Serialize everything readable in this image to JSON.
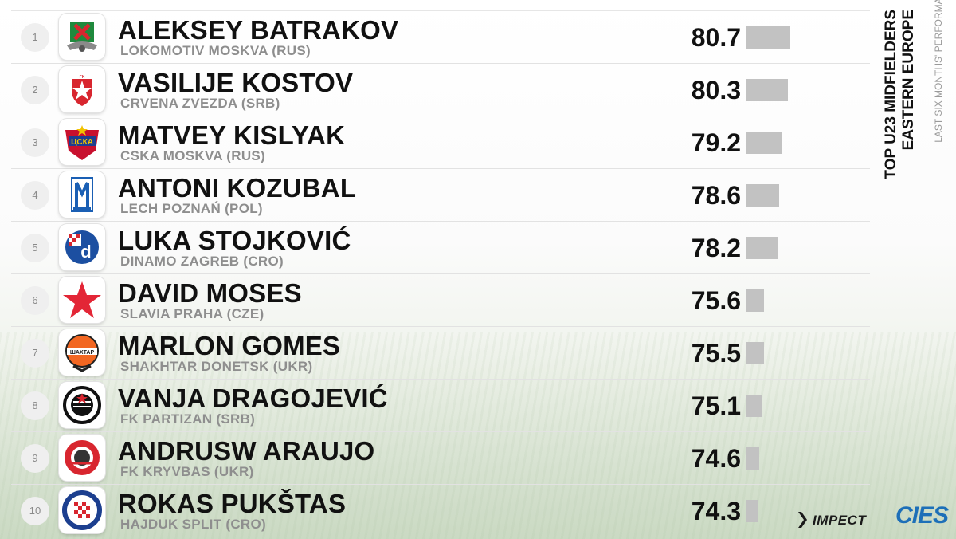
{
  "title": {
    "line1": "TOP U23 MIDFIELDERS",
    "line2": "EASTERN EUROPE",
    "subtitle": "LAST SIX MONTHS' PERFORMANCE"
  },
  "brands": {
    "impect": "IMPECT",
    "cies": "CIES"
  },
  "colors": {
    "bar": "#c2c2c2",
    "text": "#111111",
    "club_text": "#8e8e8e",
    "cies_blue": "#1d6fb8"
  },
  "chart_data": {
    "type": "bar",
    "orientation": "horizontal",
    "categories": [
      "ALEKSEY BATRAKOV",
      "VASILIJE KOSTOV",
      "MATVEY KISLYAK",
      "ANTONI KOZUBAL",
      "LUKA STOJKOVIĆ",
      "DAVID MOSES",
      "MARLON GOMES",
      "VANJA DRAGOJEVIĆ",
      "ANDRUSW ARAUJO",
      "ROKAS PUKŠTAS"
    ],
    "values": [
      80.7,
      80.3,
      79.2,
      78.6,
      78.2,
      75.6,
      75.5,
      75.1,
      74.6,
      74.3
    ],
    "title": "TOP U23 MIDFIELDERS EASTERN EUROPE",
    "subtitle": "LAST SIX MONTHS' PERFORMANCE",
    "xlabel": "",
    "ylabel": "",
    "grid": false,
    "legend": "none"
  },
  "rows": [
    {
      "rank": "1",
      "player": "ALEKSEY BATRAKOV",
      "club": "LOKOMOTIV MOSKVA (RUS)",
      "score": "80.7",
      "value": 80.7,
      "badge": "lokomotiv-icon"
    },
    {
      "rank": "2",
      "player": "VASILIJE KOSTOV",
      "club": "CRVENA ZVEZDA (SRB)",
      "score": "80.3",
      "value": 80.3,
      "badge": "crvena-zvezda-icon"
    },
    {
      "rank": "3",
      "player": "MATVEY KISLYAK",
      "club": "CSKA MOSKVA (RUS)",
      "score": "79.2",
      "value": 79.2,
      "badge": "cska-icon"
    },
    {
      "rank": "4",
      "player": "ANTONI KOZUBAL",
      "club": "LECH POZNAŃ (POL)",
      "score": "78.6",
      "value": 78.6,
      "badge": "lech-poznan-icon"
    },
    {
      "rank": "5",
      "player": "LUKA STOJKOVIĆ",
      "club": "DINAMO ZAGREB (CRO)",
      "score": "78.2",
      "value": 78.2,
      "badge": "dinamo-zagreb-icon"
    },
    {
      "rank": "6",
      "player": "DAVID MOSES",
      "club": "SLAVIA PRAHA (CZE)",
      "score": "75.6",
      "value": 75.6,
      "badge": "slavia-star-icon"
    },
    {
      "rank": "7",
      "player": "MARLON GOMES",
      "club": "SHAKHTAR DONETSK (UKR)",
      "score": "75.5",
      "value": 75.5,
      "badge": "shakhtar-icon"
    },
    {
      "rank": "8",
      "player": "VANJA DRAGOJEVIĆ",
      "club": "FK PARTIZAN (SRB)",
      "score": "75.1",
      "value": 75.1,
      "badge": "partizan-icon"
    },
    {
      "rank": "9",
      "player": "ANDRUSW ARAUJO",
      "club": "FK KRYVBAS (UKR)",
      "score": "74.6",
      "value": 74.6,
      "badge": "kryvbas-icon"
    },
    {
      "rank": "10",
      "player": "ROKAS PUKŠTAS",
      "club": "HAJDUK SPLIT (CRO)",
      "score": "74.3",
      "value": 74.3,
      "badge": "hajduk-icon"
    }
  ]
}
